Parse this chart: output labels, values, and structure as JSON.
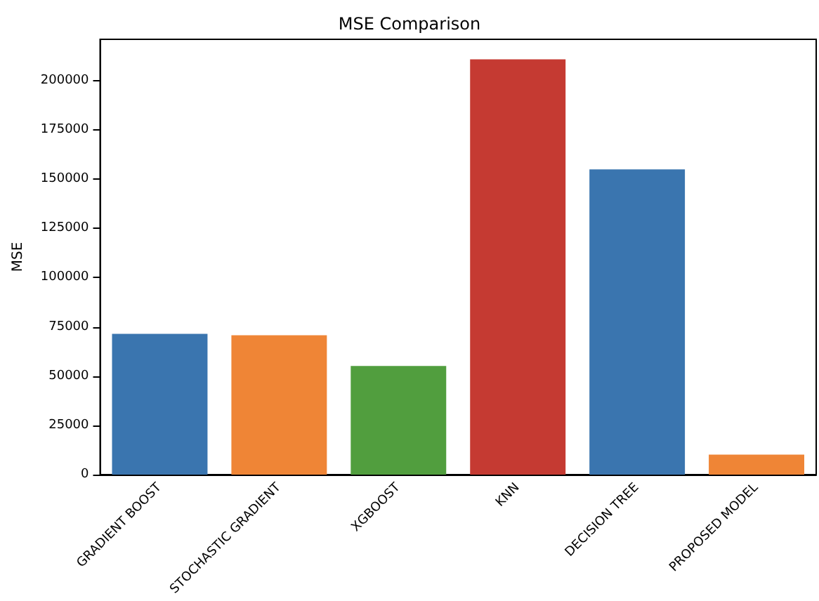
{
  "chart_data": {
    "type": "bar",
    "title": "MSE Comparison",
    "ylabel": "MSE",
    "categories": [
      "GRADIENT BOOST",
      "STOCHASTIC GRADIENT",
      "XGBOOST",
      "KNN",
      "DECISION TREE",
      "PROPOSED MODEL"
    ],
    "values": [
      71500,
      70800,
      55200,
      210800,
      155000,
      10200
    ],
    "colors": [
      "#3a75af",
      "#ef8536",
      "#519e3e",
      "#c53a32",
      "#3a75af",
      "#ef8536"
    ],
    "ylim": [
      0,
      221000
    ],
    "yticks": [
      0,
      25000,
      50000,
      75000,
      100000,
      125000,
      150000,
      175000,
      200000
    ],
    "grid": false
  }
}
